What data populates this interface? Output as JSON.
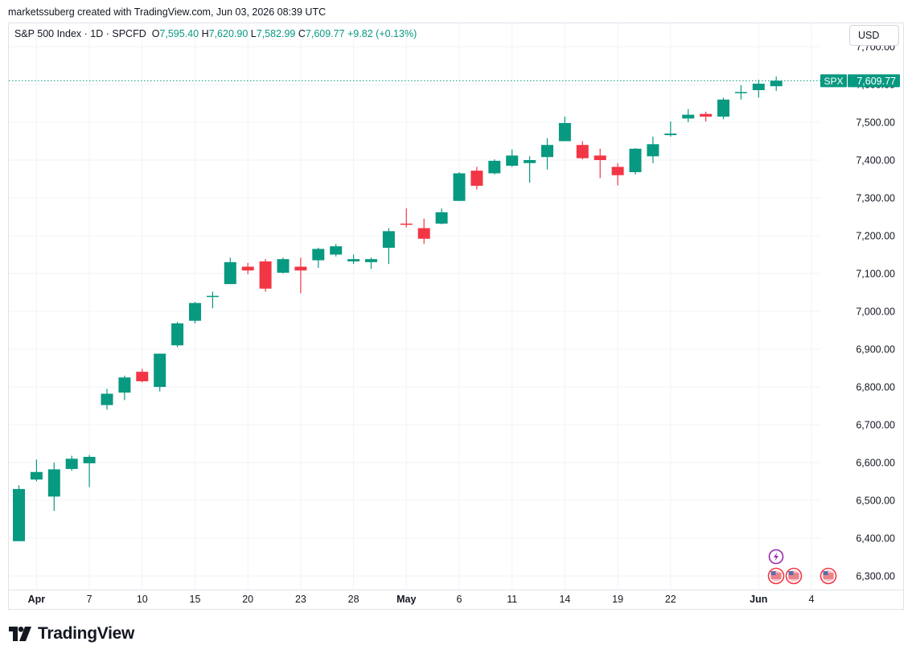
{
  "credit": "marketssuberg created with TradingView.com, Jun 03, 2026 08:39 UTC",
  "legend": {
    "symbol": "S&P 500 Index · 1D · SPCFD",
    "o_label": "O",
    "o_value": "7,595.40",
    "h_label": "H",
    "h_value": "7,620.90",
    "l_label": "L",
    "l_value": "7,582.99",
    "c_label": "C",
    "c_value": "7,609.77",
    "change": "+9.82 (+0.13%)"
  },
  "currency_button": "USD",
  "price_tag": {
    "symbol": "SPX",
    "value": "7,609.77"
  },
  "brand": "TradingView",
  "colors": {
    "up": "#089981",
    "down": "#f23645",
    "grid": "#f0f3fa",
    "axis_text": "#131722"
  },
  "icons": [
    "tradingview-logo-icon",
    "lightning-event-icon",
    "us-flag-icon"
  ],
  "chart_data": {
    "type": "candlestick",
    "symbol": "SPX",
    "ylim": [
      6270,
      7710
    ],
    "y_ticks": [
      6300,
      6400,
      6500,
      6600,
      6700,
      6800,
      6900,
      7000,
      7100,
      7200,
      7300,
      7400,
      7500,
      7600,
      7700
    ],
    "y_tick_labels": [
      "6,300.00",
      "6,400.00",
      "6,500.00",
      "6,600.00",
      "6,700.00",
      "6,800.00",
      "6,900.00",
      "7,000.00",
      "7,100.00",
      "7,200.00",
      "7,300.00",
      "7,400.00",
      "7,500.00",
      "7,600.00",
      "7,700.00"
    ],
    "x_ticks": [
      {
        "label": "Apr",
        "index": 1,
        "bold": true
      },
      {
        "label": "7",
        "index": 4
      },
      {
        "label": "10",
        "index": 7
      },
      {
        "label": "15",
        "index": 10
      },
      {
        "label": "20",
        "index": 13
      },
      {
        "label": "23",
        "index": 16
      },
      {
        "label": "28",
        "index": 19
      },
      {
        "label": "May",
        "index": 22,
        "bold": true
      },
      {
        "label": "6",
        "index": 25
      },
      {
        "label": "11",
        "index": 28
      },
      {
        "label": "14",
        "index": 31
      },
      {
        "label": "19",
        "index": 34
      },
      {
        "label": "22",
        "index": 37
      },
      {
        "label": "Jun",
        "index": 42,
        "bold": true
      },
      {
        "label": "4",
        "index": 45
      }
    ],
    "last_price": 7609.77,
    "candles": [
      {
        "o": 6392,
        "h": 6540,
        "l": 6392,
        "c": 6530
      },
      {
        "o": 6555,
        "h": 6608,
        "l": 6550,
        "c": 6575
      },
      {
        "o": 6510,
        "h": 6600,
        "l": 6472,
        "c": 6582
      },
      {
        "o": 6583,
        "h": 6618,
        "l": 6578,
        "c": 6610
      },
      {
        "o": 6598,
        "h": 6620,
        "l": 6535,
        "c": 6615
      },
      {
        "o": 6752,
        "h": 6795,
        "l": 6740,
        "c": 6782
      },
      {
        "o": 6785,
        "h": 6830,
        "l": 6765,
        "c": 6825
      },
      {
        "o": 6840,
        "h": 6848,
        "l": 6812,
        "c": 6815
      },
      {
        "o": 6800,
        "h": 6888,
        "l": 6788,
        "c": 6888
      },
      {
        "o": 6910,
        "h": 6972,
        "l": 6905,
        "c": 6968
      },
      {
        "o": 6975,
        "h": 7025,
        "l": 6968,
        "c": 7022
      },
      {
        "o": 7038,
        "h": 7052,
        "l": 7008,
        "c": 7041
      },
      {
        "o": 7072,
        "h": 7142,
        "l": 7072,
        "c": 7130
      },
      {
        "o": 7118,
        "h": 7128,
        "l": 7098,
        "c": 7108
      },
      {
        "o": 7132,
        "h": 7138,
        "l": 7052,
        "c": 7060
      },
      {
        "o": 7102,
        "h": 7142,
        "l": 7100,
        "c": 7138
      },
      {
        "o": 7118,
        "h": 7142,
        "l": 7048,
        "c": 7108
      },
      {
        "o": 7135,
        "h": 7168,
        "l": 7115,
        "c": 7165
      },
      {
        "o": 7150,
        "h": 7178,
        "l": 7145,
        "c": 7172
      },
      {
        "o": 7132,
        "h": 7150,
        "l": 7125,
        "c": 7138
      },
      {
        "o": 7130,
        "h": 7142,
        "l": 7112,
        "c": 7138
      },
      {
        "o": 7168,
        "h": 7220,
        "l": 7125,
        "c": 7212
      },
      {
        "o": 7232,
        "h": 7272,
        "l": 7222,
        "c": 7230
      },
      {
        "o": 7220,
        "h": 7245,
        "l": 7178,
        "c": 7192
      },
      {
        "o": 7232,
        "h": 7272,
        "l": 7230,
        "c": 7262
      },
      {
        "o": 7292,
        "h": 7368,
        "l": 7292,
        "c": 7365
      },
      {
        "o": 7372,
        "h": 7382,
        "l": 7322,
        "c": 7332
      },
      {
        "o": 7365,
        "h": 7402,
        "l": 7362,
        "c": 7398
      },
      {
        "o": 7385,
        "h": 7428,
        "l": 7382,
        "c": 7412
      },
      {
        "o": 7392,
        "h": 7410,
        "l": 7340,
        "c": 7400
      },
      {
        "o": 7408,
        "h": 7458,
        "l": 7375,
        "c": 7440
      },
      {
        "o": 7450,
        "h": 7515,
        "l": 7450,
        "c": 7498
      },
      {
        "o": 7440,
        "h": 7450,
        "l": 7402,
        "c": 7405
      },
      {
        "o": 7412,
        "h": 7430,
        "l": 7352,
        "c": 7400
      },
      {
        "o": 7382,
        "h": 7392,
        "l": 7333,
        "c": 7360
      },
      {
        "o": 7368,
        "h": 7432,
        "l": 7362,
        "c": 7430
      },
      {
        "o": 7410,
        "h": 7462,
        "l": 7392,
        "c": 7442
      },
      {
        "o": 7466,
        "h": 7502,
        "l": 7462,
        "c": 7470
      },
      {
        "o": 7510,
        "h": 7535,
        "l": 7500,
        "c": 7520
      },
      {
        "o": 7522,
        "h": 7528,
        "l": 7502,
        "c": 7515
      },
      {
        "o": 7515,
        "h": 7565,
        "l": 7508,
        "c": 7560
      },
      {
        "o": 7578,
        "h": 7598,
        "l": 7560,
        "c": 7580
      },
      {
        "o": 7585,
        "h": 7612,
        "l": 7565,
        "c": 7602
      },
      {
        "o": 7595.4,
        "h": 7620.9,
        "l": 7582.99,
        "c": 7609.77
      }
    ]
  }
}
